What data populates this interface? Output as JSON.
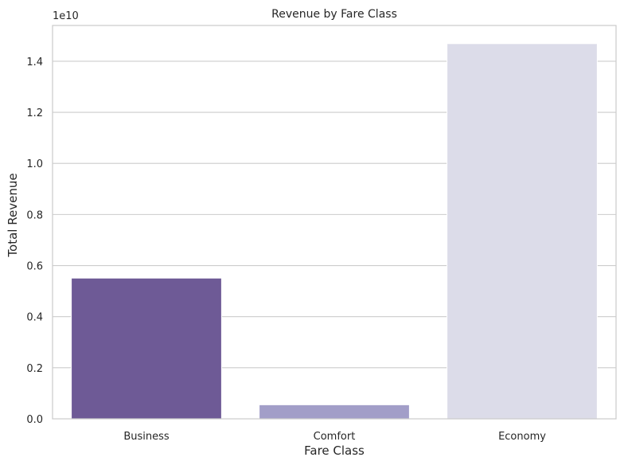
{
  "chart_data": {
    "type": "bar",
    "title": "Revenue by Fare Class",
    "xlabel": "Fare Class",
    "ylabel": "Total Revenue",
    "offset_label": "1e10",
    "categories": [
      "Business",
      "Comfort",
      "Economy"
    ],
    "values": [
      0.551,
      0.055,
      1.469
    ],
    "value_multiplier": 10000000000,
    "ylim": [
      0,
      1.54
    ],
    "yticks": [
      0.0,
      0.2,
      0.4,
      0.6,
      0.8,
      1.0,
      1.2,
      1.4
    ],
    "ytick_labels": [
      "0.0",
      "0.2",
      "0.4",
      "0.6",
      "0.8",
      "1.0",
      "1.2",
      "1.4"
    ],
    "grid": true,
    "grid_axis": "y",
    "colors": [
      "#6e5a96",
      "#a29ec8",
      "#dcdce9"
    ],
    "frame_color": "#cccccc",
    "grid_color": "#cccccc",
    "text_color": "#262626"
  }
}
